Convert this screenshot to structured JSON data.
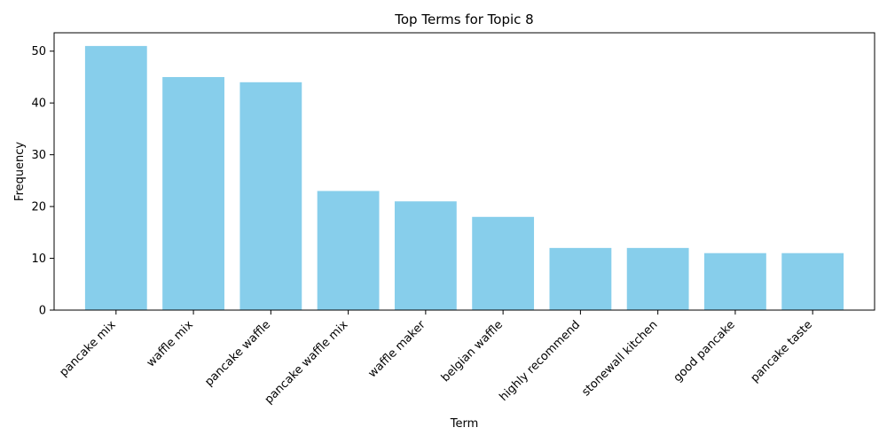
{
  "chart_data": {
    "type": "bar",
    "title": "Top Terms for Topic 8",
    "xlabel": "Term",
    "ylabel": "Frequency",
    "categories": [
      "pancake mix",
      "waffle mix",
      "pancake waffle",
      "pancake waffle mix",
      "waffle maker",
      "belgian waffle",
      "highly recommend",
      "stonewall kitchen",
      "good pancake",
      "pancake taste"
    ],
    "values": [
      51,
      45,
      44,
      23,
      21,
      18,
      12,
      12,
      11,
      11
    ],
    "yticks": [
      0,
      10,
      20,
      30,
      40,
      50
    ],
    "ylim": [
      0,
      53.55
    ],
    "bar_color": "#87ceeb",
    "grid": false,
    "legend": false
  }
}
